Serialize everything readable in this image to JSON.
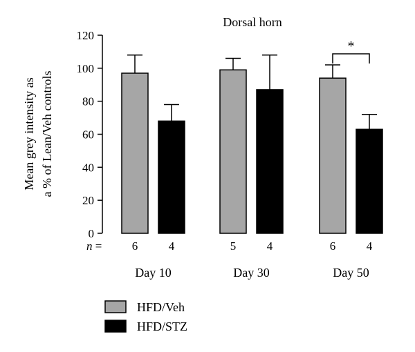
{
  "chart_data": {
    "type": "bar",
    "title": "Dorsal horn",
    "ylabel_lines": [
      "Mean grey intensity as",
      "a % of Lean/Veh controls"
    ],
    "ylim": [
      0,
      120
    ],
    "yticks": [
      0,
      20,
      40,
      60,
      80,
      100,
      120
    ],
    "categories": [
      "Day 10",
      "Day 30",
      "Day 50"
    ],
    "n_prefix": "n",
    "n_eq": " = ",
    "series": [
      {
        "name": "HFD/Veh",
        "color": "#a6a6a6",
        "values": [
          97,
          99,
          94
        ],
        "error": [
          11,
          7,
          8
        ],
        "n": [
          "6",
          "5",
          "6"
        ]
      },
      {
        "name": "HFD/STZ",
        "color": "#000000",
        "values": [
          68,
          87,
          63
        ],
        "error": [
          10,
          21,
          9
        ],
        "n": [
          "4",
          "4",
          "4"
        ]
      }
    ],
    "significance": [
      {
        "category_index": 2,
        "symbol": "*"
      }
    ],
    "grid": false,
    "legend_position": "bottom-left"
  }
}
